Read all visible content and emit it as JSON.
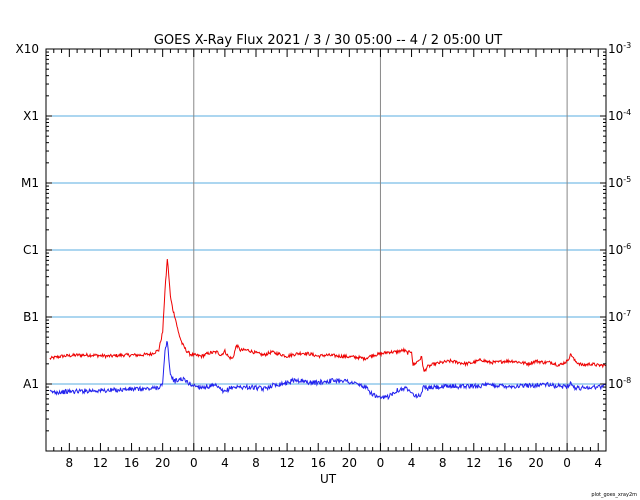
{
  "title": "GOES X-Ray Flux   2021 /  3 / 30   05:00 --  4 /  2   05:00   UT",
  "credit": "plot_goes_xray2m",
  "chart_data": {
    "type": "line",
    "title": "GOES X-Ray Flux   2021 /  3 / 30   05:00 --  4 /  2   05:00   UT",
    "xlabel": "UT",
    "ylabel": "",
    "x_unit": "hours since 2021-03-30 05:00 UT",
    "xlim": [
      0,
      72
    ],
    "y_scale": "log",
    "ylim": [
      1e-09,
      0.001
    ],
    "x_ticks": [
      {
        "x": 3,
        "label": "8"
      },
      {
        "x": 7,
        "label": "12"
      },
      {
        "x": 11,
        "label": "16"
      },
      {
        "x": 15,
        "label": "20"
      },
      {
        "x": 19,
        "label": "0"
      },
      {
        "x": 23,
        "label": "4"
      },
      {
        "x": 27,
        "label": "8"
      },
      {
        "x": 31,
        "label": "12"
      },
      {
        "x": 35,
        "label": "16"
      },
      {
        "x": 39,
        "label": "20"
      },
      {
        "x": 43,
        "label": "0"
      },
      {
        "x": 47,
        "label": "4"
      },
      {
        "x": 51,
        "label": "8"
      },
      {
        "x": 55,
        "label": "12"
      },
      {
        "x": 59,
        "label": "16"
      },
      {
        "x": 63,
        "label": "20"
      },
      {
        "x": 67,
        "label": "0"
      },
      {
        "x": 71,
        "label": "4"
      }
    ],
    "day_boundaries": [
      19,
      43,
      67
    ],
    "y_left_ticks": [
      {
        "value": 0.001,
        "label": "X10"
      },
      {
        "value": 0.0001,
        "label": "X1"
      },
      {
        "value": 1e-05,
        "label": "M1"
      },
      {
        "value": 1e-06,
        "label": "C1"
      },
      {
        "value": 1e-07,
        "label": "B1"
      },
      {
        "value": 1e-08,
        "label": "A1"
      }
    ],
    "y_right_ticks": [
      {
        "value": 0.001,
        "base": "10",
        "exp": "-3"
      },
      {
        "value": 0.0001,
        "base": "10",
        "exp": "-4"
      },
      {
        "value": 1e-05,
        "base": "10",
        "exp": "-5"
      },
      {
        "value": 1e-06,
        "base": "10",
        "exp": "-6"
      },
      {
        "value": 1e-07,
        "base": "10",
        "exp": "-7"
      },
      {
        "value": 1e-08,
        "base": "10",
        "exp": "-8"
      }
    ],
    "class_gridlines": [
      0.0001,
      1e-05,
      1e-06,
      1e-07,
      1e-08
    ],
    "grid": true,
    "series": [
      {
        "color": "#ee0000",
        "x": [
          0.5,
          2,
          4,
          6,
          8,
          10,
          12,
          13.5,
          14.5,
          15,
          15.3,
          15.6,
          15.8,
          16,
          16.3,
          16.6,
          17,
          17.5,
          18,
          18.5,
          19,
          20,
          21,
          22,
          22.5,
          23,
          23.5,
          24,
          24.5,
          25,
          26,
          27,
          28,
          29,
          30,
          31,
          32,
          33,
          34,
          35,
          36,
          38,
          40,
          41,
          42,
          43,
          44,
          45,
          46,
          46.5,
          47,
          47.2,
          48,
          48.3,
          48.6,
          49,
          50,
          51,
          52,
          53,
          54,
          55,
          56,
          57,
          58,
          59,
          60,
          61,
          62,
          63,
          64,
          65,
          66,
          67,
          67.5,
          68,
          69,
          70,
          71,
          72
        ],
        "y": [
          2.4e-08,
          2.6e-08,
          2.7e-08,
          2.7e-08,
          2.6e-08,
          2.7e-08,
          2.7e-08,
          2.8e-08,
          3.2e-08,
          6e-08,
          2.5e-07,
          7.5e-07,
          4e-07,
          2e-07,
          1.3e-07,
          1e-07,
          6e-08,
          4e-08,
          3.2e-08,
          2.8e-08,
          2.7e-08,
          2.6e-08,
          2.9e-08,
          3e-08,
          2.7e-08,
          3.1e-08,
          2.5e-08,
          2.4e-08,
          3.8e-08,
          3.2e-08,
          3.2e-08,
          2.9e-08,
          2.7e-08,
          3e-08,
          2.8e-08,
          2.6e-08,
          2.8e-08,
          2.9e-08,
          2.8e-08,
          2.6e-08,
          2.7e-08,
          2.6e-08,
          2.5e-08,
          2.4e-08,
          2.7e-08,
          2.8e-08,
          3e-08,
          3e-08,
          3.2e-08,
          2.9e-08,
          3.1e-08,
          1.9e-08,
          2.3e-08,
          2.5e-08,
          1.5e-08,
          1.8e-08,
          2e-08,
          2.1e-08,
          2.2e-08,
          2.1e-08,
          2e-08,
          2.1e-08,
          2.3e-08,
          2.1e-08,
          2.1e-08,
          2.2e-08,
          2.2e-08,
          2.1e-08,
          2e-08,
          2.2e-08,
          2.1e-08,
          2.1e-08,
          1.9e-08,
          2.2e-08,
          2.8e-08,
          2.2e-08,
          1.9e-08,
          2e-08,
          1.9e-08,
          1.9e-08
        ]
      },
      {
        "color": "#2222ee",
        "x": [
          0.5,
          2,
          4,
          6,
          8,
          10,
          12,
          13.5,
          14.5,
          15,
          15.3,
          15.6,
          15.8,
          16,
          16.3,
          16.6,
          17,
          17.5,
          18,
          18.5,
          19,
          20,
          21,
          22,
          22.5,
          23,
          23.5,
          24,
          24.5,
          25,
          26,
          27,
          28,
          29,
          30,
          31,
          32,
          33,
          34,
          35,
          36,
          38,
          40,
          41,
          42,
          43,
          44,
          45,
          46,
          46.5,
          47,
          47.2,
          48,
          48.3,
          48.6,
          49,
          50,
          51,
          52,
          53,
          54,
          55,
          56,
          57,
          58,
          59,
          60,
          61,
          62,
          63,
          64,
          65,
          66,
          67,
          67.5,
          68,
          69,
          70,
          71,
          72
        ],
        "y": [
          7.6e-09,
          7.6e-09,
          7.8e-09,
          8e-09,
          8e-09,
          8.3e-09,
          8.4e-09,
          8.5e-09,
          9e-09,
          1e-08,
          3e-08,
          4.5e-08,
          2.2e-08,
          1.4e-08,
          1.2e-08,
          1.1e-08,
          1.15e-08,
          1.2e-08,
          1.1e-08,
          1e-08,
          9.5e-09,
          9e-09,
          9.2e-09,
          9.3e-09,
          8e-09,
          7.5e-09,
          8.5e-09,
          9e-09,
          9e-09,
          9e-09,
          9e-09,
          8.8e-09,
          8.4e-09,
          9.5e-09,
          1e-08,
          1.05e-08,
          1.15e-08,
          1.1e-08,
          1.05e-08,
          1.05e-08,
          1.1e-08,
          1.15e-08,
          1e-08,
          9e-09,
          7e-09,
          6e-09,
          6.5e-09,
          8e-09,
          8.5e-09,
          8.5e-09,
          8e-09,
          7e-09,
          6.5e-09,
          7.5e-09,
          9.5e-09,
          8.5e-09,
          9e-09,
          9e-09,
          9.3e-09,
          9.2e-09,
          9.3e-09,
          9.2e-09,
          9.5e-09,
          9.6e-09,
          9.5e-09,
          9.4e-09,
          9.2e-09,
          9.3e-09,
          9.5e-09,
          9.6e-09,
          1e-08,
          9.5e-09,
          9.2e-09,
          9.3e-09,
          1.05e-08,
          8.6e-09,
          8.8e-09,
          9e-09,
          9e-09,
          9.5e-09
        ]
      }
    ]
  }
}
